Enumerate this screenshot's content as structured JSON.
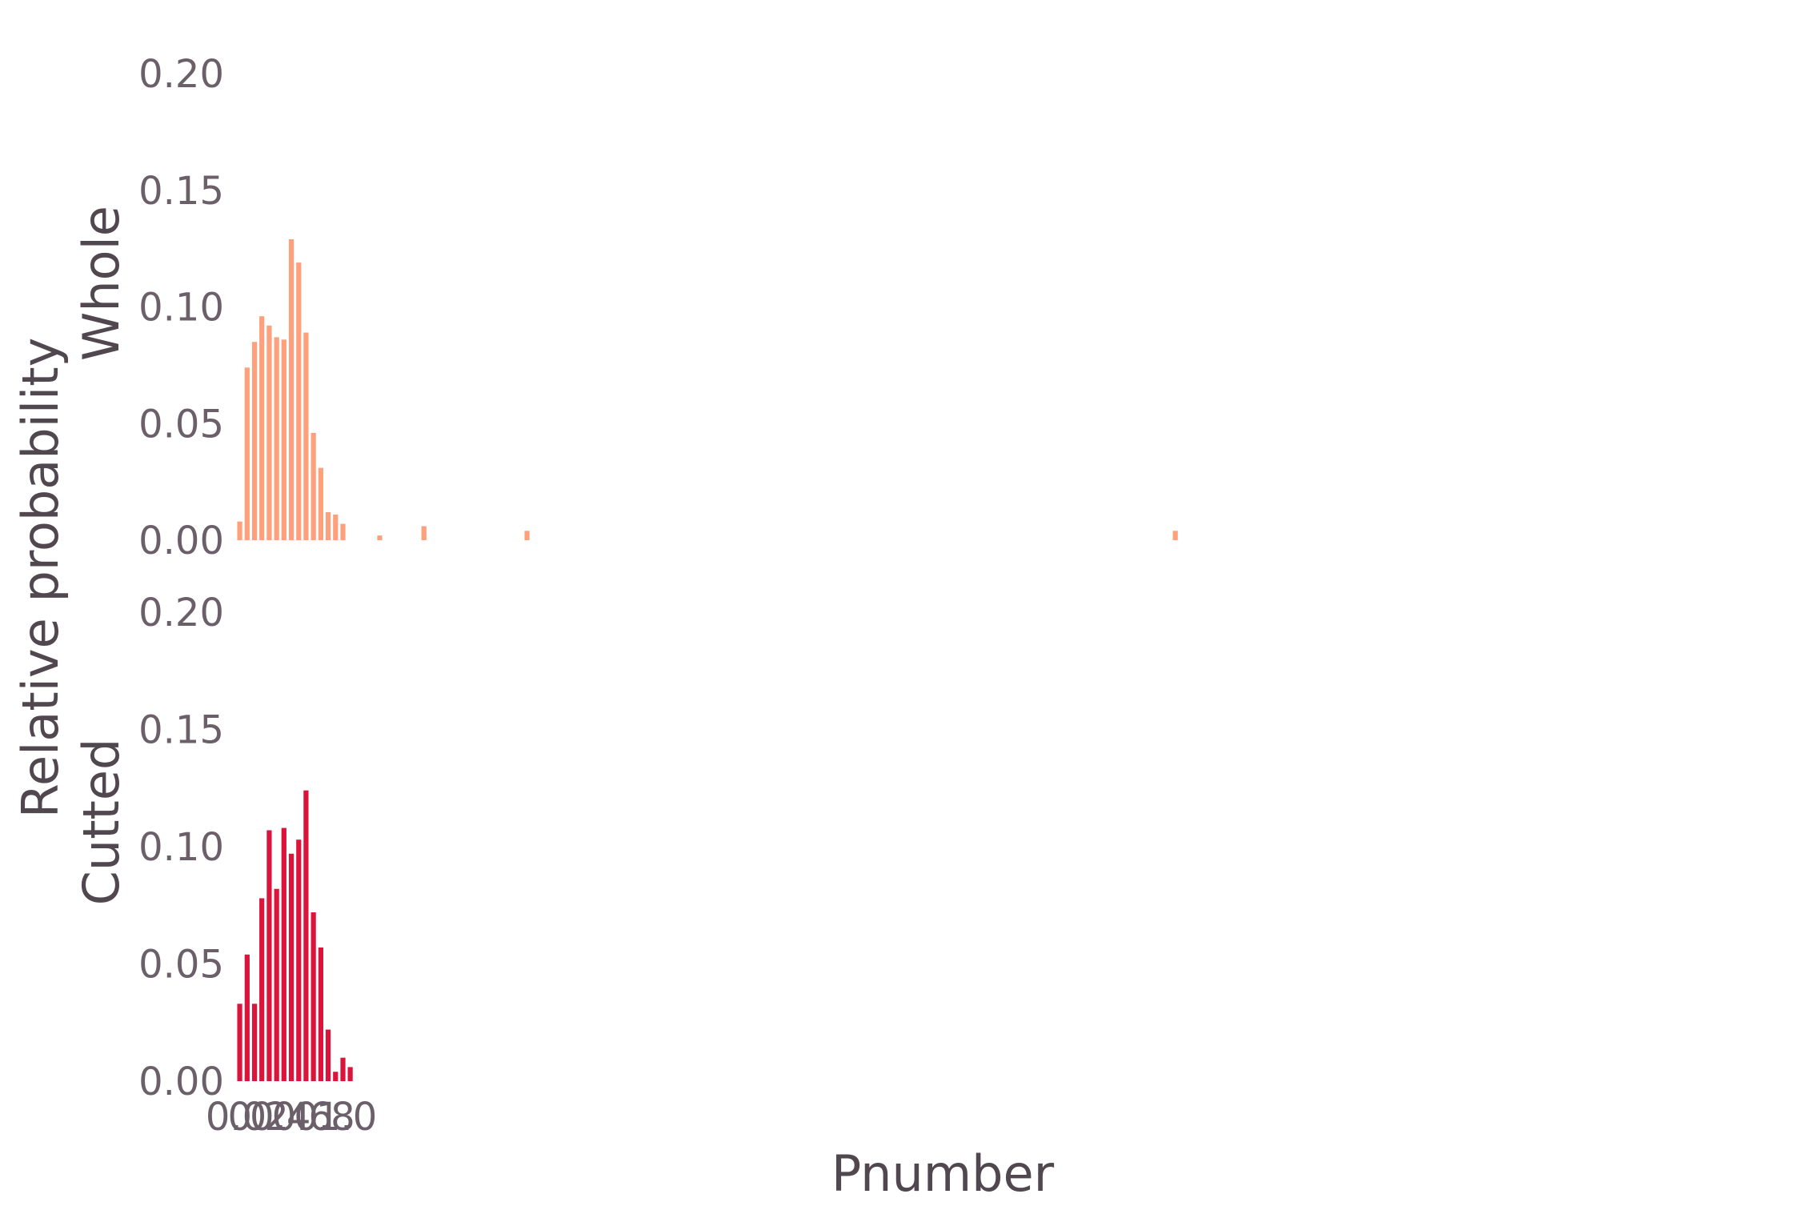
{
  "chart_data": {
    "type": "bar",
    "xlabel": "Pnumber",
    "ylabel": "Relative probability",
    "x_ticks": [
      "0.0",
      "0.2",
      "0.4",
      "0.6",
      "0.8",
      "1.0"
    ],
    "x_tick_values": [
      0.0,
      0.2,
      0.4,
      0.6,
      0.8,
      1.0
    ],
    "x_range": [
      0.0,
      13.0
    ],
    "y_ticks": [
      "0.00",
      "0.05",
      "0.10",
      "0.15",
      "0.20"
    ],
    "y_tick_values": [
      0.0,
      0.05,
      0.1,
      0.15,
      0.2
    ],
    "ylim": [
      0,
      0.2
    ],
    "grid": false,
    "bin_width": 0.0667,
    "panels": [
      {
        "name": "Whole",
        "color": "#fda07b",
        "x": [
          0.033,
          0.1,
          0.167,
          0.233,
          0.3,
          0.367,
          0.433,
          0.5,
          0.567,
          0.633,
          0.7,
          0.767,
          0.833,
          0.9,
          0.967,
          1.033,
          1.3,
          1.7,
          2.633,
          8.5
        ],
        "values": [
          0.008,
          0.074,
          0.085,
          0.096,
          0.092,
          0.087,
          0.086,
          0.129,
          0.119,
          0.089,
          0.046,
          0.031,
          0.012,
          0.011,
          0.007,
          0.0,
          0.002,
          0.006,
          0.004,
          0.004
        ]
      },
      {
        "name": "Cutted",
        "color": "#dc143c",
        "x": [
          0.033,
          0.1,
          0.167,
          0.233,
          0.3,
          0.367,
          0.433,
          0.5,
          0.567,
          0.633,
          0.7,
          0.767,
          0.833,
          0.9,
          0.967,
          1.033
        ],
        "values": [
          0.033,
          0.054,
          0.033,
          0.078,
          0.107,
          0.082,
          0.108,
          0.097,
          0.103,
          0.124,
          0.072,
          0.057,
          0.022,
          0.004,
          0.01,
          0.006
        ]
      }
    ]
  }
}
